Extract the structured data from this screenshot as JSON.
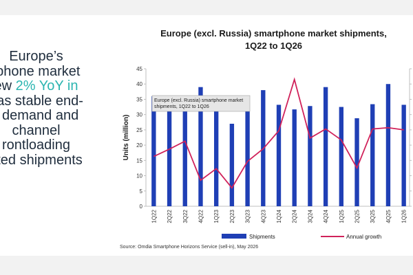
{
  "slide": {
    "text_lines": [
      {
        "plain": "Europe’s",
        "accent": ""
      },
      {
        "plain": "tphone market",
        "accent": ""
      },
      {
        "plain": "ew ",
        "accent": "2% YoY in"
      },
      {
        "plain": ", as stable end-",
        "accent": ""
      },
      {
        "plain": "r demand and",
        "accent": ""
      },
      {
        "plain": "channel",
        "accent": ""
      },
      {
        "plain": "rontloading",
        "accent": ""
      },
      {
        "plain": "sted shipments",
        "accent": ""
      }
    ],
    "source": "Source: Omdia Smartphone Horizons Service (sell-in), May 2026",
    "colors": {
      "accent_text": "#2bb5b0",
      "bar": "#1f3fb5",
      "line": "#d0215a"
    }
  },
  "chart_data": {
    "type": "bar",
    "title": [
      "Europe (excl. Russia) smartphone market shipments,",
      "1Q22 to 1Q26"
    ],
    "ylabel": "Units (million)",
    "xlabel": "",
    "ylim": [
      0,
      45
    ],
    "yticks": [
      0,
      5,
      10,
      15,
      20,
      25,
      30,
      35,
      40,
      45
    ],
    "grid": false,
    "legend_position": "bottom",
    "categories": [
      "1Q22",
      "2Q22",
      "3Q22",
      "4Q22",
      "1Q23",
      "2Q23",
      "3Q23",
      "4Q23",
      "1Q24",
      "2Q24",
      "3Q24",
      "4Q24",
      "1Q25",
      "2Q25",
      "3Q25",
      "4Q25",
      "1Q26"
    ],
    "series": [
      {
        "name": "Shipments",
        "kind": "bar",
        "axis": "left",
        "values": [
          36,
          32,
          32,
          39,
          32,
          27,
          32,
          38,
          33.2,
          31.7,
          32.8,
          39,
          32.5,
          28.8,
          33.4,
          40,
          33.2
        ]
      },
      {
        "name": "Annual growth",
        "kind": "line",
        "axis": "right",
        "values": [
          16.3,
          18.7,
          21.3,
          8.5,
          12.3,
          6,
          14.7,
          18.8,
          24.7,
          41.5,
          22.3,
          25.3,
          21.7,
          12.5,
          25.3,
          25.7,
          25
        ]
      }
    ],
    "tooltip": [
      "Europe (excl. Russia) smartphone market",
      "shipments, 1Q22 to 1Q26"
    ]
  }
}
